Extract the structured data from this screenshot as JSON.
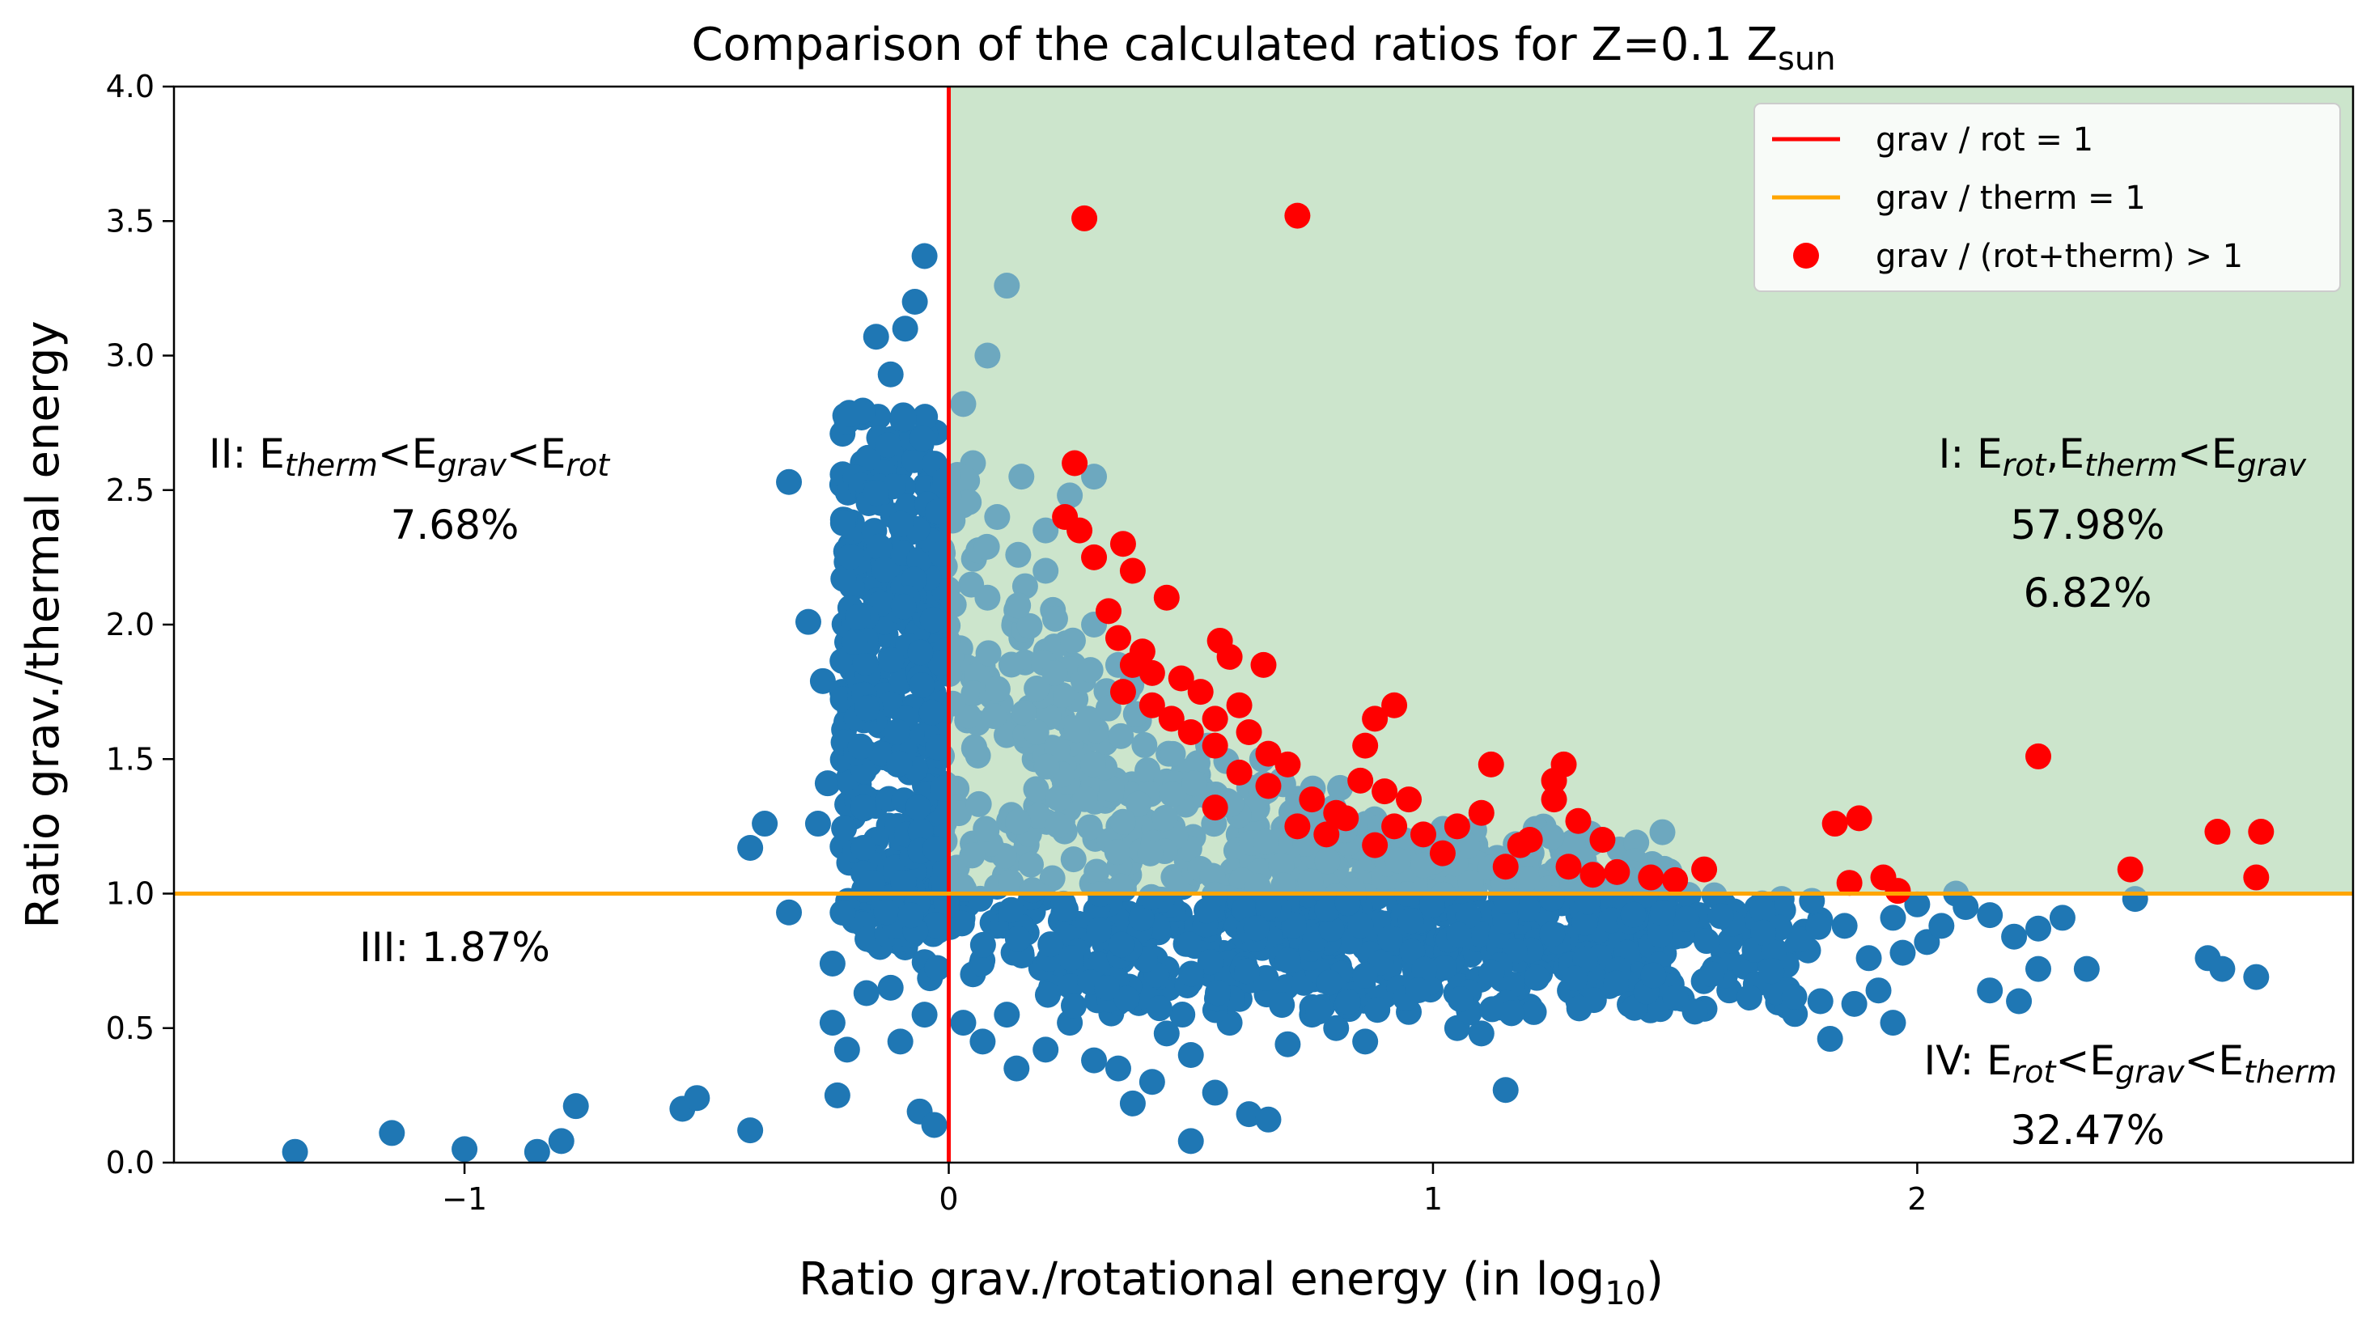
{
  "chart_data": {
    "type": "scatter",
    "title": "Comparison of the calculated ratios for Z=0.1 Z",
    "title_sub": "sun",
    "xlabel": "Ratio grav./rotational energy (in log",
    "xlabel_sub": "10",
    "xlabel_end": ")",
    "ylabel": "Ratio grav./thermal energy",
    "xlim": [
      -1.6,
      2.9
    ],
    "ylim": [
      0.0,
      4.0
    ],
    "xticks": [
      -1,
      0,
      1,
      2
    ],
    "xtick_labels": [
      "−1",
      "0",
      "1",
      "2"
    ],
    "yticks": [
      0.0,
      0.5,
      1.0,
      1.5,
      2.0,
      2.5,
      3.0,
      3.5,
      4.0
    ],
    "ytick_labels": [
      "0.0",
      "0.5",
      "1.0",
      "1.5",
      "2.0",
      "2.5",
      "3.0",
      "3.5",
      "4.0"
    ],
    "colors": {
      "blue": "#1f77b4",
      "red": "#ff0000",
      "orange": "#ffa500",
      "green_region": "#cce5cc",
      "red_percent": "#ff0000"
    },
    "lines": [
      {
        "name": "grav / rot = 1",
        "orientation": "vertical",
        "value": 0.0,
        "color": "#ff0000"
      },
      {
        "name": "grav / therm = 1",
        "orientation": "horizontal",
        "value": 1.0,
        "color": "#ffa500"
      }
    ],
    "legend": {
      "position": "upper right",
      "entries": [
        {
          "label": "grav / rot = 1",
          "kind": "line",
          "color": "#ff0000"
        },
        {
          "label": "grav / therm = 1",
          "kind": "line",
          "color": "#ffa500"
        },
        {
          "label": "grav / (rot+therm) > 1",
          "kind": "marker",
          "color": "#ff0000"
        }
      ]
    },
    "regions": [
      {
        "id": "I",
        "pre": "I: E",
        "parts": [
          [
            "rot",
            true
          ],
          [
            ",E",
            false
          ],
          [
            "therm",
            true
          ],
          [
            "<E",
            false
          ],
          [
            "grav",
            true
          ]
        ],
        "percent": "57.98%",
        "extra_percent": "6.82%"
      },
      {
        "id": "II",
        "pre": "II: E",
        "parts": [
          [
            "therm",
            true
          ],
          [
            "<E",
            false
          ],
          [
            "grav",
            true
          ],
          [
            "<E",
            false
          ],
          [
            "rot",
            true
          ]
        ],
        "percent": "7.68%"
      },
      {
        "id": "III",
        "label": "III: 1.87%"
      },
      {
        "id": "IV",
        "pre": "IV: E",
        "parts": [
          [
            "rot",
            true
          ],
          [
            "<E",
            false
          ],
          [
            "grav",
            true
          ],
          [
            "<E",
            false
          ],
          [
            "therm",
            true
          ]
        ],
        "percent": "32.47%"
      }
    ],
    "series_blue_points": [
      [
        -1.35,
        0.04
      ],
      [
        -1.15,
        0.11
      ],
      [
        -1.0,
        0.05
      ],
      [
        -0.85,
        0.04
      ],
      [
        -0.8,
        0.08
      ],
      [
        -0.77,
        0.21
      ],
      [
        -0.55,
        0.2
      ],
      [
        -0.52,
        0.24
      ],
      [
        -0.41,
        0.12
      ],
      [
        -0.41,
        1.17
      ],
      [
        -0.38,
        1.26
      ],
      [
        -0.33,
        0.93
      ],
      [
        -0.33,
        2.53
      ],
      [
        -0.29,
        2.01
      ],
      [
        -0.26,
        1.79
      ],
      [
        -0.24,
        0.74
      ],
      [
        -0.24,
        0.52
      ],
      [
        -0.21,
        0.42
      ],
      [
        -0.23,
        0.25
      ],
      [
        -0.17,
        0.63
      ],
      [
        -0.12,
        0.65
      ],
      [
        -0.06,
        0.19
      ],
      [
        -0.03,
        0.14
      ],
      [
        -0.27,
        1.26
      ],
      [
        -0.25,
        1.41
      ],
      [
        -0.2,
        1.55
      ],
      [
        -0.17,
        1.7
      ],
      [
        -0.12,
        1.88
      ],
      [
        -0.08,
        2.1
      ],
      [
        -0.05,
        2.35
      ],
      [
        -0.05,
        3.37
      ],
      [
        -0.07,
        3.2
      ],
      [
        -0.09,
        3.1
      ],
      [
        -0.15,
        3.07
      ],
      [
        -0.12,
        2.93
      ],
      [
        -0.18,
        2.77
      ],
      [
        -0.1,
        2.58
      ],
      [
        -0.22,
        2.52
      ],
      [
        -0.2,
        2.38
      ],
      [
        -0.15,
        2.25
      ],
      [
        -0.08,
        2.0
      ],
      [
        -0.18,
        1.98
      ],
      [
        -0.22,
        1.75
      ],
      [
        -0.1,
        1.6
      ],
      [
        -0.2,
        1.35
      ],
      [
        -0.15,
        1.2
      ],
      [
        -0.07,
        1.3
      ],
      [
        -0.12,
        1.05
      ],
      [
        -0.05,
        0.95
      ],
      [
        -0.09,
        0.8
      ],
      [
        -0.03,
        0.72
      ],
      [
        -0.05,
        0.55
      ],
      [
        -0.1,
        0.45
      ],
      [
        0.03,
        2.82
      ],
      [
        0.08,
        3.0
      ],
      [
        0.12,
        3.26
      ],
      [
        0.05,
        2.6
      ],
      [
        0.15,
        2.55
      ],
      [
        0.1,
        2.4
      ],
      [
        0.2,
        2.35
      ],
      [
        0.25,
        2.48
      ],
      [
        0.3,
        2.55
      ],
      [
        0.2,
        2.2
      ],
      [
        0.08,
        2.1
      ],
      [
        0.15,
        1.95
      ],
      [
        0.3,
        2.0
      ],
      [
        0.35,
        1.85
      ],
      [
        0.05,
        1.8
      ],
      [
        0.2,
        1.75
      ],
      [
        0.03,
        0.52
      ],
      [
        0.07,
        0.45
      ],
      [
        0.12,
        0.55
      ],
      [
        0.14,
        0.35
      ],
      [
        0.2,
        0.42
      ],
      [
        0.25,
        0.52
      ],
      [
        0.3,
        0.38
      ],
      [
        0.35,
        0.6
      ],
      [
        0.38,
        0.22
      ],
      [
        0.42,
        0.3
      ],
      [
        0.45,
        0.48
      ],
      [
        0.5,
        0.4
      ],
      [
        0.55,
        0.26
      ],
      [
        0.58,
        0.52
      ],
      [
        0.62,
        0.18
      ],
      [
        0.66,
        0.16
      ],
      [
        0.7,
        0.44
      ],
      [
        0.75,
        0.55
      ],
      [
        0.8,
        0.5
      ],
      [
        0.86,
        0.45
      ],
      [
        0.9,
        0.62
      ],
      [
        0.95,
        0.56
      ],
      [
        1.05,
        0.5
      ],
      [
        1.1,
        0.48
      ],
      [
        1.15,
        0.27
      ],
      [
        1.2,
        0.58
      ],
      [
        1.3,
        0.6
      ],
      [
        1.4,
        0.67
      ],
      [
        1.45,
        0.76
      ],
      [
        1.5,
        0.84
      ],
      [
        1.55,
        0.92
      ],
      [
        1.6,
        0.78
      ],
      [
        1.65,
        0.85
      ],
      [
        1.7,
        0.7
      ],
      [
        1.75,
        0.8
      ],
      [
        1.8,
        0.6
      ],
      [
        1.82,
        0.46
      ],
      [
        1.85,
        0.88
      ],
      [
        1.9,
        0.76
      ],
      [
        1.92,
        0.64
      ],
      [
        1.95,
        0.91
      ],
      [
        1.97,
        0.78
      ],
      [
        2.0,
        0.96
      ],
      [
        2.02,
        0.82
      ],
      [
        2.05,
        0.88
      ],
      [
        2.08,
        1.0
      ],
      [
        2.1,
        0.95
      ],
      [
        2.15,
        0.92
      ],
      [
        2.2,
        0.84
      ],
      [
        2.25,
        0.87
      ],
      [
        2.3,
        0.91
      ],
      [
        2.35,
        0.72
      ],
      [
        2.45,
        0.98
      ],
      [
        2.6,
        0.76
      ],
      [
        2.63,
        0.72
      ],
      [
        2.7,
        0.69
      ],
      [
        2.25,
        0.72
      ],
      [
        2.21,
        0.6
      ],
      [
        2.15,
        0.64
      ],
      [
        1.87,
        0.59
      ],
      [
        1.95,
        0.52
      ],
      [
        0.5,
        0.08
      ],
      [
        0.35,
        0.35
      ],
      [
        0.55,
        0.75
      ],
      [
        0.6,
        0.66
      ],
      [
        0.75,
        0.7
      ],
      [
        0.92,
        0.76
      ],
      [
        1.0,
        0.72
      ],
      [
        1.25,
        0.75
      ],
      [
        1.35,
        0.83
      ],
      [
        1.6,
        0.96
      ],
      [
        1.72,
        0.98
      ],
      [
        1.48,
        0.96
      ],
      [
        1.2,
        0.9
      ],
      [
        0.8,
        0.85
      ],
      [
        0.45,
        0.72
      ],
      [
        0.28,
        0.85
      ],
      [
        0.22,
        0.7
      ],
      [
        0.15,
        0.78
      ],
      [
        0.1,
        0.88
      ],
      [
        0.05,
        0.7
      ],
      [
        0.55,
        0.9
      ],
      [
        0.65,
        0.82
      ],
      [
        0.72,
        0.98
      ],
      [
        0.85,
        0.92
      ],
      [
        1.0,
        0.95
      ],
      [
        1.1,
        0.85
      ],
      [
        1.3,
        0.92
      ],
      [
        1.42,
        0.86
      ],
      [
        1.55,
        0.86
      ],
      [
        1.62,
        0.9
      ]
    ],
    "series_red_points": [
      [
        0.28,
        3.51
      ],
      [
        0.72,
        3.52
      ],
      [
        0.26,
        2.6
      ],
      [
        0.24,
        2.4
      ],
      [
        0.27,
        2.35
      ],
      [
        0.3,
        2.25
      ],
      [
        0.36,
        2.3
      ],
      [
        0.38,
        2.2
      ],
      [
        0.33,
        2.05
      ],
      [
        0.4,
        1.9
      ],
      [
        0.45,
        2.1
      ],
      [
        0.35,
        1.95
      ],
      [
        0.38,
        1.85
      ],
      [
        0.42,
        1.82
      ],
      [
        0.36,
        1.75
      ],
      [
        0.42,
        1.7
      ],
      [
        0.46,
        1.65
      ],
      [
        0.5,
        1.6
      ],
      [
        0.55,
        1.55
      ],
      [
        0.48,
        1.8
      ],
      [
        0.52,
        1.75
      ],
      [
        0.56,
        1.94
      ],
      [
        0.58,
        1.88
      ],
      [
        0.65,
        1.85
      ],
      [
        0.6,
        1.7
      ],
      [
        0.55,
        1.65
      ],
      [
        0.62,
        1.6
      ],
      [
        0.66,
        1.52
      ],
      [
        0.7,
        1.48
      ],
      [
        0.66,
        1.4
      ],
      [
        0.75,
        1.35
      ],
      [
        0.8,
        1.3
      ],
      [
        0.85,
        1.42
      ],
      [
        0.9,
        1.38
      ],
      [
        0.95,
        1.35
      ],
      [
        0.88,
        1.65
      ],
      [
        0.92,
        1.7
      ],
      [
        0.86,
        1.55
      ],
      [
        0.6,
        1.45
      ],
      [
        0.55,
        1.32
      ],
      [
        0.72,
        1.25
      ],
      [
        0.78,
        1.22
      ],
      [
        0.82,
        1.28
      ],
      [
        0.88,
        1.18
      ],
      [
        0.92,
        1.25
      ],
      [
        0.98,
        1.22
      ],
      [
        1.02,
        1.15
      ],
      [
        1.05,
        1.25
      ],
      [
        1.1,
        1.3
      ],
      [
        1.12,
        1.48
      ],
      [
        1.18,
        1.18
      ],
      [
        1.15,
        1.1
      ],
      [
        1.2,
        1.2
      ],
      [
        1.25,
        1.42
      ],
      [
        1.25,
        1.35
      ],
      [
        1.27,
        1.48
      ],
      [
        1.3,
        1.27
      ],
      [
        1.28,
        1.1
      ],
      [
        1.35,
        1.2
      ],
      [
        1.33,
        1.07
      ],
      [
        1.38,
        1.08
      ],
      [
        1.45,
        1.06
      ],
      [
        1.5,
        1.05
      ],
      [
        1.56,
        1.09
      ],
      [
        1.83,
        1.26
      ],
      [
        1.88,
        1.28
      ],
      [
        1.86,
        1.04
      ],
      [
        1.93,
        1.06
      ],
      [
        1.96,
        1.01
      ],
      [
        2.25,
        1.51
      ],
      [
        2.44,
        1.09
      ],
      [
        2.62,
        1.23
      ],
      [
        2.71,
        1.23
      ],
      [
        2.7,
        1.06
      ]
    ],
    "dense_region": {
      "description_value_only": "",
      "x_range": [
        0.0,
        1.3
      ],
      "y_range": [
        0.85,
        2.75
      ]
    }
  }
}
